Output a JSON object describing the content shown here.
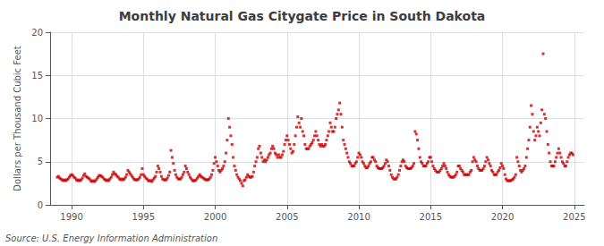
{
  "chart_data": {
    "type": "scatter",
    "title": "Monthly Natural Gas Citygate Price in South Dakota",
    "ylabel": "Dollars per Thousand Cubic Feet",
    "annotations": [
      "Source: U.S. Energy Information Administration"
    ],
    "color": "#cc0000",
    "marker": "square",
    "grid": true,
    "xlim": [
      1988.5,
      2025.7
    ],
    "ylim": [
      0,
      20
    ],
    "xticks": [
      1990,
      1995,
      2000,
      2005,
      2010,
      2015,
      2020,
      2025
    ],
    "yticks": [
      0,
      5,
      10,
      15,
      20
    ],
    "x": [
      1989.0,
      1989.083,
      1989.167,
      1989.25,
      1989.333,
      1989.417,
      1989.5,
      1989.583,
      1989.667,
      1989.75,
      1989.833,
      1989.917,
      1990.0,
      1990.083,
      1990.167,
      1990.25,
      1990.333,
      1990.417,
      1990.5,
      1990.583,
      1990.667,
      1990.75,
      1990.833,
      1990.917,
      1991.0,
      1991.083,
      1991.167,
      1991.25,
      1991.333,
      1991.417,
      1991.5,
      1991.583,
      1991.667,
      1991.75,
      1991.833,
      1991.917,
      1992.0,
      1992.083,
      1992.167,
      1992.25,
      1992.333,
      1992.417,
      1992.5,
      1992.583,
      1992.667,
      1992.75,
      1992.833,
      1992.917,
      1993.0,
      1993.083,
      1993.167,
      1993.25,
      1993.333,
      1993.417,
      1993.5,
      1993.583,
      1993.667,
      1993.75,
      1993.833,
      1993.917,
      1994.0,
      1994.083,
      1994.167,
      1994.25,
      1994.333,
      1994.417,
      1994.5,
      1994.583,
      1994.667,
      1994.75,
      1994.833,
      1994.917,
      1995.0,
      1995.083,
      1995.167,
      1995.25,
      1995.333,
      1995.417,
      1995.5,
      1995.583,
      1995.667,
      1995.75,
      1995.833,
      1995.917,
      1996.0,
      1996.083,
      1996.167,
      1996.25,
      1996.333,
      1996.417,
      1996.5,
      1996.583,
      1996.667,
      1996.75,
      1996.833,
      1996.917,
      1997.0,
      1997.083,
      1997.167,
      1997.25,
      1997.333,
      1997.417,
      1997.5,
      1997.583,
      1997.667,
      1997.75,
      1997.833,
      1997.917,
      1998.0,
      1998.083,
      1998.167,
      1998.25,
      1998.333,
      1998.417,
      1998.5,
      1998.583,
      1998.667,
      1998.75,
      1998.833,
      1998.917,
      1999.0,
      1999.083,
      1999.167,
      1999.25,
      1999.333,
      1999.417,
      1999.5,
      1999.583,
      1999.667,
      1999.75,
      1999.833,
      1999.917,
      2000.0,
      2000.083,
      2000.167,
      2000.25,
      2000.333,
      2000.417,
      2000.5,
      2000.583,
      2000.667,
      2000.75,
      2000.833,
      2000.917,
      2001.0,
      2001.083,
      2001.167,
      2001.25,
      2001.333,
      2001.417,
      2001.5,
      2001.583,
      2001.667,
      2001.75,
      2001.833,
      2001.917,
      2002.0,
      2002.083,
      2002.167,
      2002.25,
      2002.333,
      2002.417,
      2002.5,
      2002.583,
      2002.667,
      2002.75,
      2002.833,
      2002.917,
      2003.0,
      2003.083,
      2003.167,
      2003.25,
      2003.333,
      2003.417,
      2003.5,
      2003.583,
      2003.667,
      2003.75,
      2003.833,
      2003.917,
      2004.0,
      2004.083,
      2004.167,
      2004.25,
      2004.333,
      2004.417,
      2004.5,
      2004.583,
      2004.667,
      2004.75,
      2004.833,
      2004.917,
      2005.0,
      2005.083,
      2005.167,
      2005.25,
      2005.333,
      2005.417,
      2005.5,
      2005.583,
      2005.667,
      2005.75,
      2005.833,
      2005.917,
      2006.0,
      2006.083,
      2006.167,
      2006.25,
      2006.333,
      2006.417,
      2006.5,
      2006.583,
      2006.667,
      2006.75,
      2006.833,
      2006.917,
      2007.0,
      2007.083,
      2007.167,
      2007.25,
      2007.333,
      2007.417,
      2007.5,
      2007.583,
      2007.667,
      2007.75,
      2007.833,
      2007.917,
      2008.0,
      2008.083,
      2008.167,
      2008.25,
      2008.333,
      2008.417,
      2008.5,
      2008.583,
      2008.667,
      2008.75,
      2008.833,
      2008.917,
      2009.0,
      2009.083,
      2009.167,
      2009.25,
      2009.333,
      2009.417,
      2009.5,
      2009.583,
      2009.667,
      2009.75,
      2009.833,
      2009.917,
      2010.0,
      2010.083,
      2010.167,
      2010.25,
      2010.333,
      2010.417,
      2010.5,
      2010.583,
      2010.667,
      2010.75,
      2010.833,
      2010.917,
      2011.0,
      2011.083,
      2011.167,
      2011.25,
      2011.333,
      2011.417,
      2011.5,
      2011.583,
      2011.667,
      2011.75,
      2011.833,
      2011.917,
      2012.0,
      2012.083,
      2012.167,
      2012.25,
      2012.333,
      2012.417,
      2012.5,
      2012.583,
      2012.667,
      2012.75,
      2012.833,
      2012.917,
      2013.0,
      2013.083,
      2013.167,
      2013.25,
      2013.333,
      2013.417,
      2013.5,
      2013.583,
      2013.667,
      2013.75,
      2013.833,
      2013.917,
      2014.0,
      2014.083,
      2014.167,
      2014.25,
      2014.333,
      2014.417,
      2014.5,
      2014.583,
      2014.667,
      2014.75,
      2014.833,
      2014.917,
      2015.0,
      2015.083,
      2015.167,
      2015.25,
      2015.333,
      2015.417,
      2015.5,
      2015.583,
      2015.667,
      2015.75,
      2015.833,
      2015.917,
      2016.0,
      2016.083,
      2016.167,
      2016.25,
      2016.333,
      2016.417,
      2016.5,
      2016.583,
      2016.667,
      2016.75,
      2016.833,
      2016.917,
      2017.0,
      2017.083,
      2017.167,
      2017.25,
      2017.333,
      2017.417,
      2017.5,
      2017.583,
      2017.667,
      2017.75,
      2017.833,
      2017.917,
      2018.0,
      2018.083,
      2018.167,
      2018.25,
      2018.333,
      2018.417,
      2018.5,
      2018.583,
      2018.667,
      2018.75,
      2018.833,
      2018.917,
      2019.0,
      2019.083,
      2019.167,
      2019.25,
      2019.333,
      2019.417,
      2019.5,
      2019.583,
      2019.667,
      2019.75,
      2019.833,
      2019.917,
      2020.0,
      2020.083,
      2020.167,
      2020.25,
      2020.333,
      2020.417,
      2020.5,
      2020.583,
      2020.667,
      2020.75,
      2020.833,
      2020.917,
      2021.0,
      2021.083,
      2021.167,
      2021.25,
      2021.333,
      2021.417,
      2021.5,
      2021.583,
      2021.667,
      2021.75,
      2021.833,
      2021.917,
      2022.0,
      2022.083,
      2022.167,
      2022.25,
      2022.333,
      2022.417,
      2022.5,
      2022.583,
      2022.667,
      2022.75,
      2022.833,
      2022.917,
      2023.0,
      2023.083,
      2023.167,
      2023.25,
      2023.333,
      2023.417,
      2023.5,
      2023.583,
      2023.667,
      2023.75,
      2023.833,
      2023.917,
      2024.0,
      2024.083,
      2024.167,
      2024.25,
      2024.333,
      2024.417,
      2024.5,
      2024.583,
      2024.667,
      2024.75,
      2024.833,
      2024.917
    ],
    "values": [
      3.2,
      3.3,
      3.1,
      3.0,
      2.9,
      2.8,
      2.9,
      2.8,
      2.9,
      3.0,
      3.2,
      3.4,
      3.5,
      3.4,
      3.2,
      3.1,
      2.9,
      2.8,
      2.9,
      2.8,
      2.9,
      3.1,
      3.4,
      3.6,
      3.3,
      3.2,
      3.1,
      3.0,
      2.8,
      2.7,
      2.8,
      2.7,
      2.8,
      3.0,
      3.2,
      3.4,
      3.4,
      3.3,
      3.2,
      3.0,
      2.9,
      2.8,
      2.9,
      2.8,
      3.0,
      3.2,
      3.5,
      3.8,
      3.6,
      3.5,
      3.3,
      3.2,
      3.0,
      2.9,
      3.0,
      2.9,
      3.0,
      3.2,
      3.5,
      4.0,
      3.8,
      3.6,
      3.4,
      3.2,
      3.0,
      2.9,
      2.9,
      2.9,
      3.0,
      3.2,
      3.5,
      4.2,
      3.5,
      3.3,
      3.1,
      3.0,
      2.8,
      2.8,
      2.8,
      2.7,
      2.9,
      3.1,
      3.3,
      3.8,
      4.5,
      4.2,
      3.8,
      3.3,
      3.0,
      2.9,
      2.9,
      2.9,
      3.1,
      3.4,
      3.8,
      6.3,
      5.5,
      4.8,
      4.0,
      3.5,
      3.2,
      3.0,
      3.0,
      3.0,
      3.2,
      3.5,
      3.8,
      4.5,
      4.2,
      3.8,
      3.5,
      3.2,
      3.0,
      2.8,
      2.8,
      2.8,
      2.9,
      3.1,
      3.3,
      3.5,
      3.3,
      3.2,
      3.1,
      3.0,
      2.9,
      2.9,
      2.9,
      3.0,
      3.2,
      3.5,
      4.0,
      4.8,
      5.5,
      5.0,
      4.5,
      4.0,
      3.8,
      4.0,
      4.2,
      4.5,
      5.0,
      6.0,
      7.5,
      10.0,
      9.0,
      8.0,
      7.0,
      5.5,
      4.5,
      4.0,
      3.5,
      3.2,
      3.0,
      2.8,
      2.5,
      2.2,
      2.8,
      2.9,
      3.2,
      3.5,
      3.3,
      3.2,
      3.2,
      3.3,
      3.8,
      4.5,
      5.0,
      5.5,
      6.5,
      6.8,
      6.0,
      5.5,
      5.0,
      5.2,
      5.0,
      5.2,
      5.5,
      5.8,
      6.0,
      6.5,
      6.8,
      6.5,
      6.0,
      5.8,
      5.5,
      5.8,
      5.5,
      5.5,
      5.8,
      6.2,
      7.0,
      7.5,
      8.0,
      7.5,
      7.0,
      6.5,
      6.0,
      6.2,
      7.0,
      8.0,
      9.0,
      10.2,
      9.5,
      9.0,
      10.0,
      8.5,
      8.0,
      7.0,
      6.5,
      6.5,
      6.5,
      6.8,
      7.0,
      7.2,
      7.5,
      8.0,
      8.5,
      8.0,
      7.5,
      7.0,
      6.8,
      7.0,
      6.8,
      6.8,
      7.0,
      7.5,
      8.0,
      8.5,
      9.5,
      9.0,
      8.5,
      8.5,
      9.0,
      10.0,
      10.5,
      11.0,
      11.8,
      10.5,
      9.0,
      7.5,
      7.0,
      6.5,
      6.0,
      5.5,
      5.0,
      4.8,
      4.5,
      4.5,
      4.5,
      4.8,
      5.0,
      5.5,
      6.0,
      5.8,
      5.5,
      5.0,
      4.8,
      4.5,
      4.3,
      4.3,
      4.5,
      4.8,
      5.0,
      5.5,
      5.5,
      5.2,
      5.0,
      4.5,
      4.3,
      4.2,
      4.2,
      4.2,
      4.3,
      4.5,
      4.8,
      5.2,
      5.0,
      4.5,
      4.0,
      3.5,
      3.2,
      3.0,
      3.0,
      3.0,
      3.2,
      3.5,
      4.0,
      4.5,
      5.0,
      5.2,
      5.0,
      4.5,
      4.3,
      4.2,
      4.2,
      4.2,
      4.3,
      4.5,
      4.8,
      8.5,
      8.2,
      7.5,
      6.5,
      5.5,
      5.0,
      4.8,
      4.5,
      4.5,
      4.5,
      4.8,
      5.0,
      5.5,
      5.5,
      5.0,
      4.5,
      4.2,
      4.0,
      3.8,
      3.8,
      3.8,
      4.0,
      4.2,
      4.5,
      4.8,
      4.5,
      4.2,
      3.8,
      3.5,
      3.3,
      3.2,
      3.2,
      3.2,
      3.3,
      3.5,
      3.8,
      4.5,
      4.5,
      4.2,
      4.0,
      3.8,
      3.5,
      3.5,
      3.5,
      3.5,
      3.5,
      3.8,
      4.0,
      5.0,
      5.5,
      5.2,
      5.0,
      4.5,
      4.2,
      4.0,
      4.0,
      4.0,
      4.2,
      4.5,
      5.0,
      5.5,
      5.2,
      4.8,
      4.5,
      4.0,
      3.8,
      3.5,
      3.5,
      3.5,
      3.8,
      4.0,
      4.3,
      4.8,
      4.5,
      4.2,
      3.5,
      3.0,
      2.8,
      2.8,
      2.8,
      2.8,
      2.9,
      3.0,
      3.2,
      3.5,
      5.5,
      5.0,
      4.5,
      4.0,
      3.8,
      4.0,
      4.2,
      4.5,
      5.5,
      6.5,
      7.5,
      9.0,
      11.5,
      10.5,
      8.5,
      7.5,
      8.0,
      9.0,
      8.5,
      8.0,
      9.5,
      11.0,
      17.5,
      10.5,
      10.0,
      8.5,
      7.0,
      6.0,
      5.0,
      4.5,
      4.5,
      4.5,
      5.0,
      5.5,
      6.0,
      6.5,
      6.0,
      5.5,
      5.0,
      4.8,
      4.5,
      4.5,
      5.0,
      5.5,
      5.8,
      6.0,
      6.0,
      5.8
    ]
  }
}
